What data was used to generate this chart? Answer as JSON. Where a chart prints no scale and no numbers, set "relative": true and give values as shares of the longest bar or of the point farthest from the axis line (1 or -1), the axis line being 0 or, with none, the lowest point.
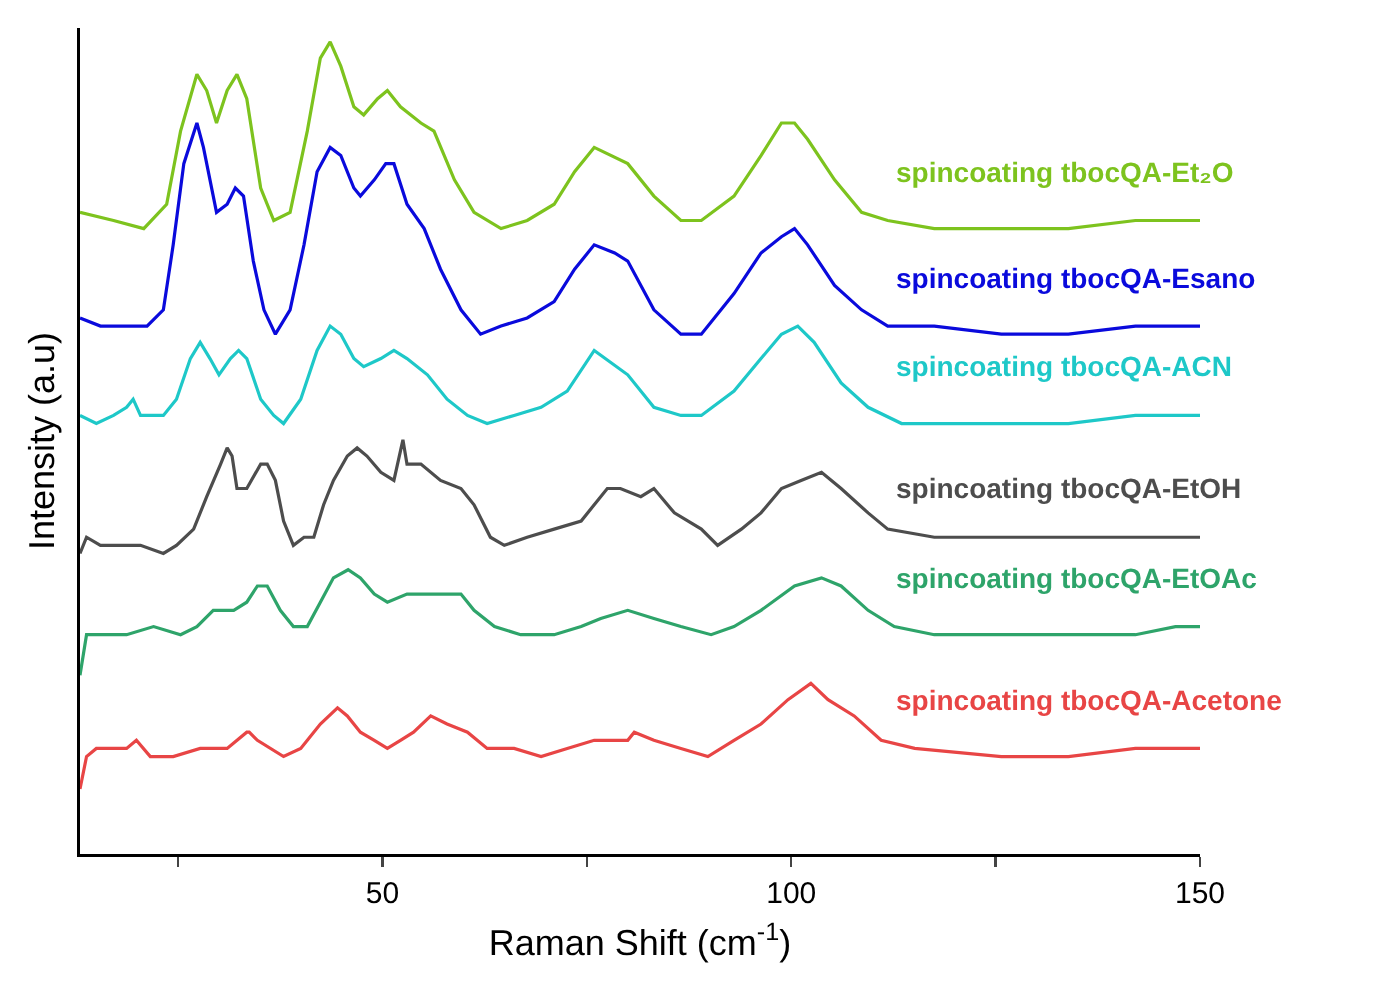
{
  "chart_data": {
    "type": "line",
    "relative": true,
    "xlabel": "Raman Shift (cm$^{-1}$)",
    "ylabel": "Intensity (a.u)",
    "xlim": [
      13,
      150
    ],
    "xticks": [
      {
        "value": 25,
        "label": null
      },
      50,
      {
        "value": 75,
        "label": null
      },
      100,
      {
        "value": 125,
        "label": null
      },
      150
    ],
    "grid": false,
    "legend": false,
    "marker": "none",
    "line_style": "solid",
    "series": [
      {
        "name": "spincoating tbocQA-Et₂O",
        "color": "#7dc31e",
        "x": [
          13,
          17.1,
          20.8,
          23.6,
          25.3,
          27.3,
          28.5,
          29.7,
          31,
          32.2,
          33.4,
          35.1,
          36.7,
          38.7,
          40.8,
          42.4,
          43.6,
          44.9,
          46.5,
          47.7,
          49.4,
          50.6,
          52.2,
          54.7,
          56.3,
          58.8,
          61.2,
          64.5,
          67.7,
          71,
          73.5,
          75.9,
          80,
          83.2,
          86.5,
          89,
          93,
          96.3,
          98.8,
          100.4,
          102,
          105.3,
          108.6,
          111.8,
          117.5,
          125.7,
          133.9,
          142.1,
          146.1,
          150
        ],
        "values": [
          0.79,
          0.78,
          0.77,
          0.8,
          0.89,
          0.96,
          0.94,
          0.9,
          0.94,
          0.96,
          0.93,
          0.82,
          0.78,
          0.79,
          0.89,
          0.98,
          1,
          0.97,
          0.92,
          0.91,
          0.93,
          0.94,
          0.92,
          0.9,
          0.89,
          0.83,
          0.79,
          0.77,
          0.78,
          0.8,
          0.84,
          0.87,
          0.85,
          0.81,
          0.78,
          0.78,
          0.81,
          0.86,
          0.9,
          0.9,
          0.88,
          0.83,
          0.79,
          0.78,
          0.77,
          0.77,
          0.77,
          0.78,
          0.78,
          0.78
        ]
      },
      {
        "name": "spincoating tbocQA-Esano",
        "color": "#0a0adc",
        "x": [
          13,
          15.5,
          17.5,
          18.7,
          21.2,
          23.2,
          24.4,
          25.7,
          27.3,
          28.1,
          29.7,
          31,
          32,
          33,
          34.2,
          35.5,
          36.9,
          38.7,
          40.4,
          42,
          43.6,
          44.9,
          46.5,
          47.3,
          49,
          50.4,
          51.4,
          53,
          55.1,
          57.1,
          59.6,
          62,
          64.5,
          67.7,
          71,
          73.5,
          75.9,
          78.4,
          80,
          83.2,
          86.5,
          89,
          93,
          96.3,
          98.8,
          100.4,
          102,
          105.3,
          108.6,
          111.8,
          117.5,
          125.7,
          133.9,
          142.1,
          146.1,
          150
        ],
        "values": [
          0.66,
          0.65,
          0.65,
          0.65,
          0.65,
          0.67,
          0.75,
          0.85,
          0.9,
          0.87,
          0.79,
          0.8,
          0.82,
          0.81,
          0.73,
          0.67,
          0.64,
          0.67,
          0.75,
          0.84,
          0.87,
          0.86,
          0.82,
          0.81,
          0.83,
          0.85,
          0.85,
          0.8,
          0.77,
          0.72,
          0.67,
          0.64,
          0.65,
          0.66,
          0.68,
          0.72,
          0.75,
          0.74,
          0.73,
          0.67,
          0.64,
          0.64,
          0.69,
          0.74,
          0.76,
          0.77,
          0.75,
          0.7,
          0.67,
          0.65,
          0.65,
          0.64,
          0.64,
          0.65,
          0.65,
          0.65
        ]
      },
      {
        "name": "spincoating tbocQA-ACN",
        "color": "#1ec8c8",
        "x": [
          13,
          15,
          17.1,
          18.7,
          19.5,
          20.4,
          23.2,
          24.8,
          26.5,
          27.7,
          28.9,
          30,
          31.4,
          32.4,
          33.4,
          35.1,
          36.7,
          37.9,
          40,
          42,
          43.6,
          44.9,
          46.5,
          47.7,
          49.8,
          51.4,
          53,
          55.5,
          57.9,
          60.4,
          62.8,
          66.1,
          69.4,
          72.6,
          75.9,
          80,
          83.2,
          86.5,
          89,
          93,
          96.3,
          98.8,
          100.8,
          102.8,
          106.1,
          109.4,
          113.5,
          121.6,
          133.9,
          142.1,
          147,
          150
        ],
        "values": [
          0.54,
          0.53,
          0.54,
          0.55,
          0.56,
          0.54,
          0.54,
          0.56,
          0.61,
          0.63,
          0.61,
          0.59,
          0.61,
          0.62,
          0.61,
          0.56,
          0.54,
          0.53,
          0.56,
          0.62,
          0.65,
          0.64,
          0.61,
          0.6,
          0.61,
          0.62,
          0.61,
          0.59,
          0.56,
          0.54,
          0.53,
          0.54,
          0.55,
          0.57,
          0.62,
          0.59,
          0.55,
          0.54,
          0.54,
          0.57,
          0.61,
          0.64,
          0.65,
          0.63,
          0.58,
          0.55,
          0.53,
          0.53,
          0.53,
          0.54,
          0.54,
          0.54
        ]
      },
      {
        "name": "spincoating tbocQA-EtOH",
        "color": "#4d4d4d",
        "x": [
          13,
          13.8,
          15.5,
          17.9,
          20.4,
          23.2,
          24.8,
          26.9,
          28.5,
          30.2,
          31,
          31.6,
          32.2,
          33.4,
          35.1,
          35.9,
          36.9,
          37.9,
          39.1,
          40.4,
          41.6,
          42.8,
          44,
          45.7,
          46.9,
          48.1,
          49.8,
          51.4,
          52.5,
          53,
          54.7,
          57.1,
          59.6,
          61.2,
          63.2,
          64.9,
          67.7,
          71,
          74.3,
          75.9,
          77.5,
          79.1,
          81.6,
          83.2,
          85.7,
          89,
          91,
          93.9,
          96.3,
          98.8,
          101.2,
          103.7,
          106.1,
          109.4,
          111.8,
          117.5,
          125.7,
          133.9,
          142.1,
          150
        ],
        "values": [
          0.37,
          0.39,
          0.38,
          0.38,
          0.38,
          0.37,
          0.38,
          0.4,
          0.44,
          0.48,
          0.5,
          0.49,
          0.45,
          0.45,
          0.48,
          0.48,
          0.46,
          0.41,
          0.38,
          0.39,
          0.39,
          0.43,
          0.46,
          0.49,
          0.5,
          0.49,
          0.47,
          0.46,
          0.51,
          0.48,
          0.48,
          0.46,
          0.45,
          0.43,
          0.39,
          0.38,
          0.39,
          0.4,
          0.41,
          0.43,
          0.45,
          0.45,
          0.44,
          0.45,
          0.42,
          0.4,
          0.38,
          0.4,
          0.42,
          0.45,
          0.46,
          0.47,
          0.45,
          0.42,
          0.4,
          0.39,
          0.39,
          0.39,
          0.39,
          0.39
        ]
      },
      {
        "name": "spincoating tbocQA-EtOAc",
        "color": "#2ea46a",
        "x": [
          13,
          13.8,
          15.5,
          18.7,
          22,
          25.3,
          27.3,
          29.3,
          31.8,
          33.4,
          34.7,
          35.9,
          37.5,
          39.1,
          40.8,
          42.4,
          44,
          45.8,
          47.3,
          49,
          50.6,
          53,
          55.5,
          57.9,
          59.6,
          61.2,
          63.7,
          66.9,
          71,
          74.3,
          76.7,
          80,
          83.2,
          86.5,
          90.2,
          93,
          96.3,
          100.4,
          103.7,
          106.1,
          109.4,
          112.6,
          117.5,
          125.7,
          133.9,
          142.1,
          147,
          150
        ],
        "values": [
          0.22,
          0.27,
          0.27,
          0.27,
          0.28,
          0.27,
          0.28,
          0.3,
          0.3,
          0.31,
          0.33,
          0.33,
          0.3,
          0.28,
          0.28,
          0.31,
          0.34,
          0.35,
          0.34,
          0.32,
          0.31,
          0.32,
          0.32,
          0.32,
          0.32,
          0.3,
          0.28,
          0.27,
          0.27,
          0.28,
          0.29,
          0.3,
          0.29,
          0.28,
          0.27,
          0.28,
          0.3,
          0.33,
          0.34,
          0.33,
          0.3,
          0.28,
          0.27,
          0.27,
          0.27,
          0.27,
          0.28,
          0.28
        ]
      },
      {
        "name": "spincoating tbocQA-Acetone",
        "color": "#e84545",
        "x": [
          13,
          13.8,
          15,
          17.1,
          18.7,
          19.9,
          21.6,
          24.4,
          27.7,
          31,
          33.4,
          33.7,
          34.7,
          37.9,
          40,
          42.4,
          44.5,
          45.7,
          47.3,
          49,
          50.6,
          52.2,
          53.8,
          55.9,
          57.9,
          60.4,
          62.8,
          66.1,
          69.4,
          72.6,
          75.9,
          80,
          80.8,
          83.2,
          86.5,
          89.8,
          93,
          96.3,
          99.6,
          102.4,
          104.5,
          107.7,
          111,
          115.1,
          125.7,
          133.9,
          142.1,
          150
        ],
        "values": [
          0.08,
          0.12,
          0.13,
          0.13,
          0.13,
          0.14,
          0.12,
          0.12,
          0.13,
          0.13,
          0.15,
          0.15,
          0.14,
          0.12,
          0.13,
          0.16,
          0.18,
          0.17,
          0.15,
          0.14,
          0.13,
          0.14,
          0.15,
          0.17,
          0.16,
          0.15,
          0.13,
          0.13,
          0.12,
          0.13,
          0.14,
          0.14,
          0.15,
          0.14,
          0.13,
          0.12,
          0.14,
          0.16,
          0.19,
          0.21,
          0.19,
          0.17,
          0.14,
          0.13,
          0.12,
          0.12,
          0.13,
          0.13
        ]
      }
    ]
  }
}
